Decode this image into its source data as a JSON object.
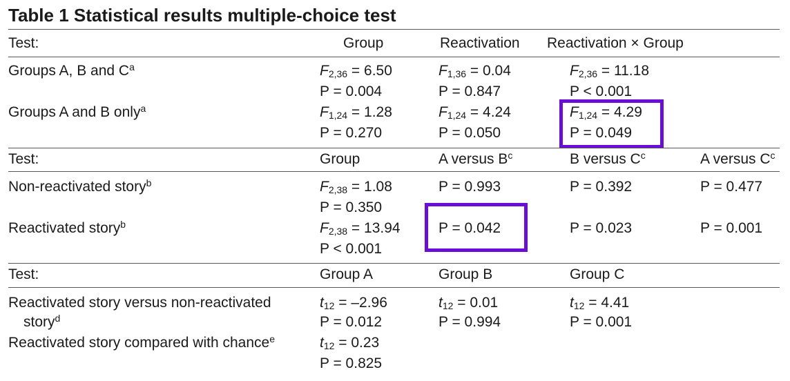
{
  "title": "Table 1 Statistical results multiple-choice test",
  "section1": {
    "test_label": "Test:",
    "headers": [
      "Group",
      "Reactivation",
      "Reactivation × Group"
    ],
    "rows": [
      {
        "label": "Groups A, B and C",
        "note": "a",
        "group": {
          "stat": "F",
          "df": "2,36",
          "val": " = 6.50",
          "p": "P = 0.004"
        },
        "reactivation": {
          "stat": "F",
          "df": "1,36",
          "val": " = 0.04",
          "p": "P = 0.847"
        },
        "interaction": {
          "stat": "F",
          "df": "2,36",
          "val": " = 11.18",
          "p": "P < 0.001"
        }
      },
      {
        "label": "Groups A and B only",
        "note": "a",
        "group": {
          "stat": "F",
          "df": "1,24",
          "val": " = 1.28",
          "p": "P = 0.270"
        },
        "reactivation": {
          "stat": "F",
          "df": "1,24",
          "val": " = 4.24",
          "p": "P = 0.050"
        },
        "interaction": {
          "stat": "F",
          "df": "1,24",
          "val": " = 4.29",
          "p": "P = 0.049"
        }
      }
    ]
  },
  "section2": {
    "test_label": "Test:",
    "headers": [
      "Group",
      "A versus B",
      "B versus C",
      "A versus C"
    ],
    "header_note": "c",
    "rows": [
      {
        "label": "Non-reactivated story",
        "note": "b",
        "group": {
          "stat": "F",
          "df": "2,38",
          "val": " = 1.08",
          "p": "P = 0.350"
        },
        "ab": "P = 0.993",
        "bc": "P = 0.392",
        "ac": "P = 0.477"
      },
      {
        "label": "Reactivated story",
        "note": "b",
        "group": {
          "stat": "F",
          "df": "2,38",
          "val": " = 13.94",
          "p": "P < 0.001"
        },
        "ab": "P = 0.042",
        "bc": "P = 0.023",
        "ac": "P = 0.001"
      }
    ]
  },
  "section3": {
    "test_label": "Test:",
    "headers": [
      "Group A",
      "Group B",
      "Group C"
    ],
    "rows": [
      {
        "label_line1": "Reactivated story versus non-reactivated",
        "label_line2": "story",
        "note": "d",
        "a": {
          "stat": "t",
          "df": "12",
          "val": " = –2.96",
          "p": "P = 0.012"
        },
        "b": {
          "stat": "t",
          "df": "12",
          "val": " = 0.01",
          "p": "P = 0.994"
        },
        "c": {
          "stat": "t",
          "df": "12",
          "val": " = 4.41",
          "p": "P = 0.001"
        }
      },
      {
        "label": "Reactivated story compared with chance",
        "note": "e",
        "a": {
          "stat": "t",
          "df": "12",
          "val": " = 0.23",
          "p": "P = 0.825"
        }
      }
    ]
  },
  "highlight_color": "#6a0dd8"
}
